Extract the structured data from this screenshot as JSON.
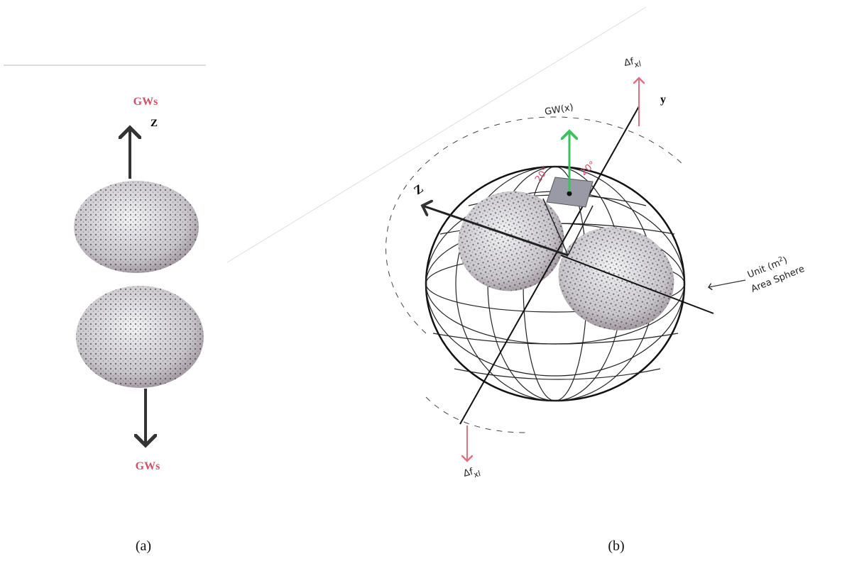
{
  "panel_a": {
    "top_label": "GWs",
    "axis_label": "Z",
    "bottom_label": "GWs",
    "caption": "(a)"
  },
  "panel_b": {
    "top_axis_label": {
      "main": "Δf",
      "sub": "xl"
    },
    "y_label": "y",
    "gw_label": "GW(x)",
    "angle_left": "20°",
    "angle_right": "20°",
    "z_label": "Z",
    "sphere_label": {
      "before": "Unit (m",
      "sup": "2",
      "after": ")",
      "line2": "Area Sphere"
    },
    "bottom_axis_label": {
      "main": "Δf",
      "sub": "xl"
    },
    "caption": "(b)"
  }
}
